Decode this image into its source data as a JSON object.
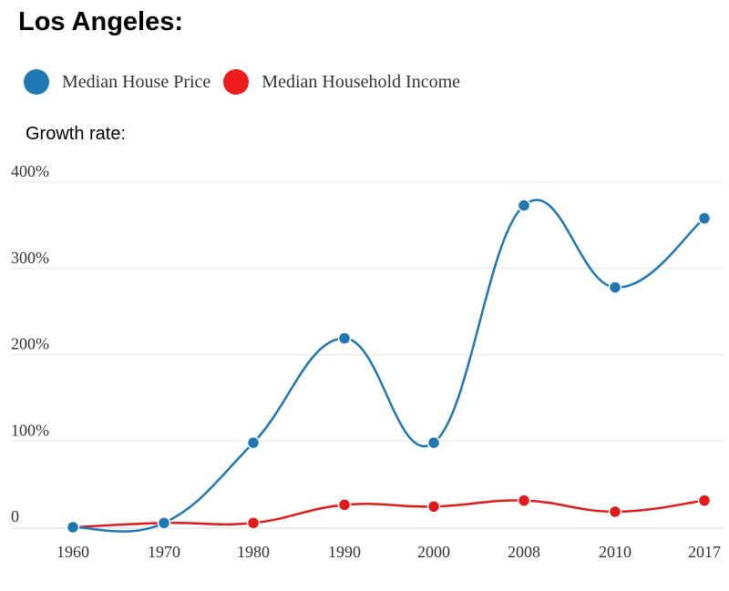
{
  "title": "Los Angeles:",
  "subtitle": "Growth rate:",
  "chart_data": {
    "type": "line",
    "categories": [
      "1960",
      "1970",
      "1980",
      "1990",
      "2000",
      "2008",
      "2010",
      "2017"
    ],
    "ytick_labels": [
      "0",
      "100%",
      "200%",
      "300%",
      "400%"
    ],
    "ylim": [
      0,
      400
    ],
    "grid": true,
    "legend_position": "top-left",
    "series": [
      {
        "name": "Median House Price",
        "color": "#1f77b4",
        "values": [
          0,
          5,
          98,
          219,
          98,
          373,
          278,
          358
        ]
      },
      {
        "name": "Median Household Income",
        "color": "#e31a1c",
        "values": [
          0,
          5,
          5,
          26,
          24,
          31,
          18,
          31
        ]
      }
    ]
  }
}
